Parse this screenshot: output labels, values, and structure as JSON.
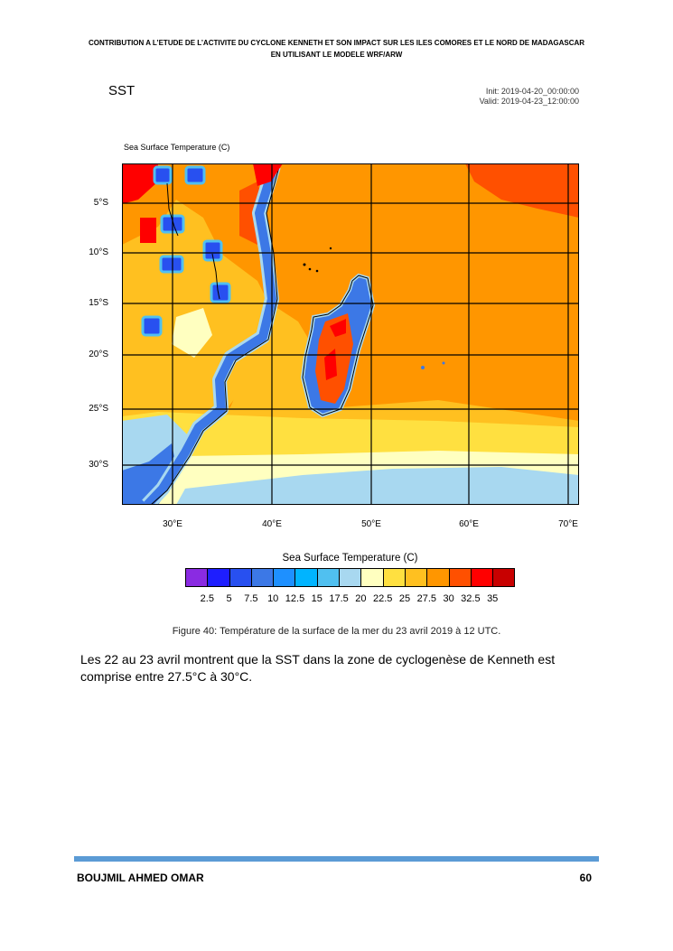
{
  "header": {
    "line1": "CONTRIBUTION A L’ETUDE DE L’ACTIVITE DU CYCLONE KENNETH ET SON IMPACT SUR LES ILES COMORES ET LE NORD DE MADAGASCAR",
    "line2": "EN UTILISANT LE MODELE WRF/ARW"
  },
  "figure": {
    "title": "SST",
    "init": "Init: 2019-04-20_00:00:00",
    "valid": "Valid: 2019-04-23_12:00:00",
    "field_label": "Sea Surface Temperature   (C)",
    "lat_labels": [
      "5°S",
      "10°S",
      "15°S",
      "20°S",
      "25°S",
      "30°S"
    ],
    "lon_labels": [
      "30°E",
      "40°E",
      "50°E",
      "60°E",
      "70°E"
    ],
    "colorbar": {
      "title": "Sea Surface Temperature  (C)",
      "colors": [
        "#8a2be2",
        "#1e1eff",
        "#2850f0",
        "#3c78e6",
        "#1e90ff",
        "#00b4ff",
        "#50c0f0",
        "#a8d8f0",
        "#ffffc0",
        "#ffe040",
        "#ffc020",
        "#ff9600",
        "#ff5000",
        "#ff0000",
        "#c80000"
      ],
      "labels": [
        "2.5",
        "5",
        "7.5",
        "10",
        "12.5",
        "15",
        "17.5",
        "20",
        "22.5",
        "25",
        "27.5",
        "30",
        "32.5",
        "35"
      ]
    },
    "caption": "Figure 40: Température de la surface de la mer du 23 avril 2019 à 12 UTC."
  },
  "body": {
    "paragraph": "Les 22 au 23 avril montrent que la SST dans la zone de cyclogenèse de Kenneth est comprise entre 27.5°C à 30°C."
  },
  "footer": {
    "author": "BOUJMIL AHMED OMAR",
    "page": "60",
    "bar_color": "#5b9bd5"
  }
}
